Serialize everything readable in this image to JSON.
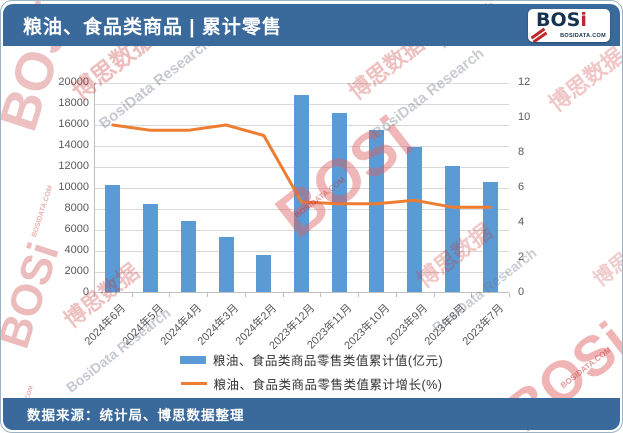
{
  "header": {
    "title": "粮油、食品类商品 | 累计零售",
    "logo_text": "BOS",
    "logo_i": "i",
    "logo_site": "BOSIDATA.COM"
  },
  "footer": {
    "source": "数据来源：统计局、博思数据整理"
  },
  "watermark": {
    "logo": "BOSi",
    "cn": "博思数据",
    "cn_short": "博思",
    "en": "BosiData Research",
    "en_short": "Research",
    "site": "BOSIDATA.COM"
  },
  "colors": {
    "header_blue": "#3a699b",
    "bar_blue": "#5b9bd5",
    "line_orange": "#ed7d31"
  },
  "chart_data": {
    "type": "bar",
    "title": "粮油、食品类商品 | 累计零售",
    "categories": [
      "2024年6月",
      "2024年5月",
      "2024年4月",
      "2024年3月",
      "2024年2月",
      "2023年12月",
      "2023年11月",
      "2023年10月",
      "2023年9月",
      "2023年8月",
      "2023年7月"
    ],
    "series": [
      {
        "name": "粮油、食品类商品零售类值累计值(亿元)",
        "type": "bar",
        "axis": "left",
        "color": "#5b9bd5",
        "values": [
          10300,
          8450,
          6850,
          5350,
          3650,
          18900,
          17150,
          15550,
          13950,
          12100,
          10550
        ]
      },
      {
        "name": "粮油、食品类商品零售类值累计增长(%)",
        "type": "line",
        "axis": "right",
        "color": "#ed7d31",
        "values": [
          9.6,
          9.3,
          9.3,
          9.6,
          9.0,
          5.2,
          5.1,
          5.1,
          5.3,
          4.9,
          4.9
        ]
      }
    ],
    "left_axis": {
      "min": 0,
      "max": 20000,
      "step": 2000
    },
    "right_axis": {
      "min": 0,
      "max": 12,
      "step": 2
    },
    "grid": true,
    "legend_position": "bottom"
  }
}
